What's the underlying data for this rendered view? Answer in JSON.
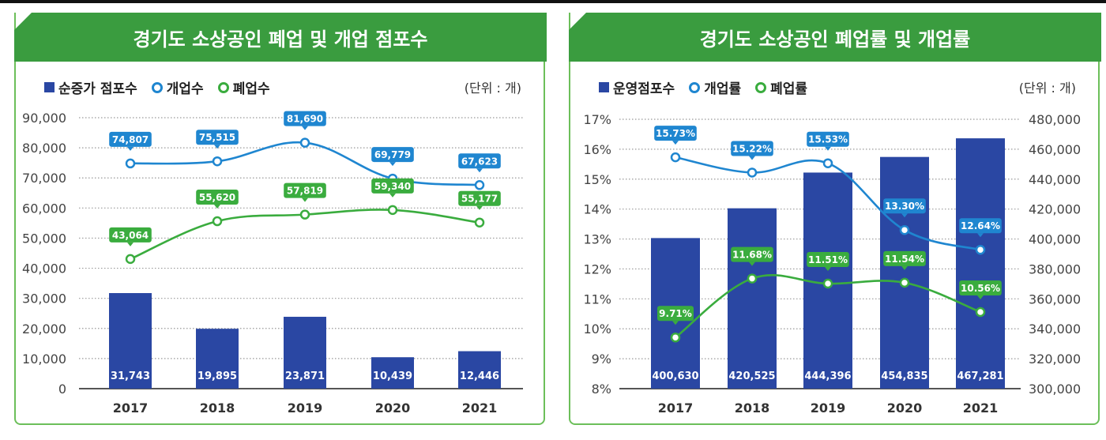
{
  "chart_data": [
    {
      "type": "bar+line",
      "title": "경기도 소상공인 폐업 및 개업 점포수",
      "unit_label": "(단위 : 개)",
      "categories": [
        "2017",
        "2018",
        "2019",
        "2020",
        "2021"
      ],
      "ylim": [
        0,
        90000
      ],
      "yticks": [
        "0",
        "10,000",
        "20,000",
        "30,000",
        "40,000",
        "50,000",
        "60,000",
        "70,000",
        "80,000",
        "90,000"
      ],
      "grid": true,
      "legend_position": "top-left",
      "series": [
        {
          "name": "순증가 점포수",
          "kind": "bar",
          "axis": "left",
          "color": "#2a47a3",
          "values": [
            31743,
            19895,
            23871,
            10439,
            12446
          ],
          "labels": [
            "31,743",
            "19,895",
            "23,871",
            "10,439",
            "12,446"
          ]
        },
        {
          "name": "개업수",
          "kind": "line",
          "axis": "left",
          "color": "#1f86d0",
          "values": [
            74807,
            75515,
            81690,
            69779,
            67623
          ],
          "labels": [
            "74,807",
            "75,515",
            "81,690",
            "69,779",
            "67,623"
          ]
        },
        {
          "name": "폐업수",
          "kind": "line",
          "axis": "left",
          "color": "#3aac3e",
          "values": [
            43064,
            55620,
            57819,
            59340,
            55177
          ],
          "labels": [
            "43,064",
            "55,620",
            "57,819",
            "59,340",
            "55,177"
          ]
        }
      ]
    },
    {
      "type": "bar+line",
      "title": "경기도 소상공인 폐업률 및 개업률",
      "unit_label": "(단위 : 개)",
      "categories": [
        "2017",
        "2018",
        "2019",
        "2020",
        "2021"
      ],
      "ylim": [
        8,
        17
      ],
      "yticks": [
        "8%",
        "9%",
        "10%",
        "11%",
        "12%",
        "13%",
        "14%",
        "15%",
        "16%",
        "17%"
      ],
      "y2lim": [
        300000,
        480000
      ],
      "y2ticks": [
        "300,000",
        "320,000",
        "340,000",
        "360,000",
        "380,000",
        "400,000",
        "420,000",
        "440,000",
        "460,000",
        "480,000"
      ],
      "grid": true,
      "legend_position": "top-left",
      "series": [
        {
          "name": "운영점포수",
          "kind": "bar",
          "axis": "right",
          "color": "#2a47a3",
          "values": [
            400630,
            420525,
            444396,
            454835,
            467281
          ],
          "labels": [
            "400,630",
            "420,525",
            "444,396",
            "454,835",
            "467,281"
          ]
        },
        {
          "name": "개업률",
          "kind": "line",
          "axis": "left",
          "color": "#1f86d0",
          "values": [
            15.73,
            15.22,
            15.53,
            13.3,
            12.64
          ],
          "labels": [
            "15.73%",
            "15.22%",
            "15.53%",
            "13.30%",
            "12.64%"
          ]
        },
        {
          "name": "폐업률",
          "kind": "line",
          "axis": "left",
          "color": "#3aac3e",
          "values": [
            9.71,
            11.68,
            11.51,
            11.54,
            10.56
          ],
          "labels": [
            "9.71%",
            "11.68%",
            "11.51%",
            "11.54%",
            "10.56%"
          ]
        }
      ]
    }
  ]
}
